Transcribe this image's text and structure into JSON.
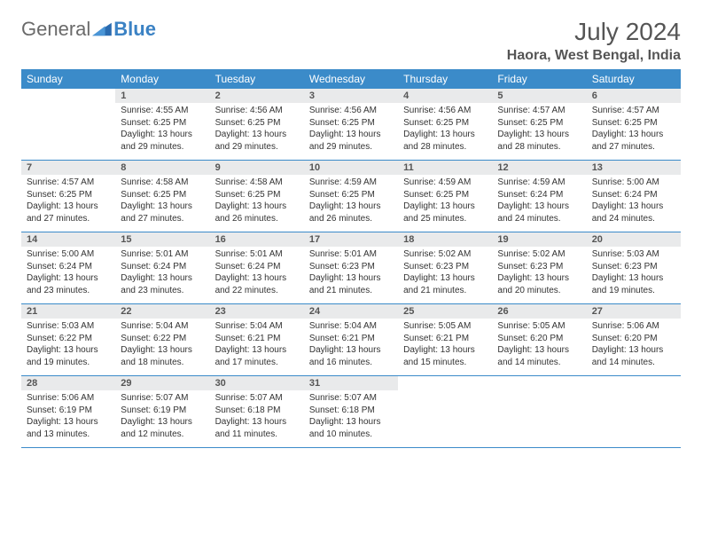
{
  "brand": {
    "part1": "General",
    "part2": "Blue"
  },
  "title": "July 2024",
  "location": "Haora, West Bengal, India",
  "colors": {
    "header_bg": "#3b8bc9",
    "header_text": "#ffffff",
    "daynum_bg": "#e9eaeb",
    "text": "#333333",
    "title_text": "#555555",
    "row_border": "#3b8bc9"
  },
  "weekdays": [
    "Sunday",
    "Monday",
    "Tuesday",
    "Wednesday",
    "Thursday",
    "Friday",
    "Saturday"
  ],
  "start_weekday": 1,
  "days": [
    {
      "n": 1,
      "sunrise": "4:55 AM",
      "sunset": "6:25 PM",
      "daylight": "13 hours and 29 minutes."
    },
    {
      "n": 2,
      "sunrise": "4:56 AM",
      "sunset": "6:25 PM",
      "daylight": "13 hours and 29 minutes."
    },
    {
      "n": 3,
      "sunrise": "4:56 AM",
      "sunset": "6:25 PM",
      "daylight": "13 hours and 29 minutes."
    },
    {
      "n": 4,
      "sunrise": "4:56 AM",
      "sunset": "6:25 PM",
      "daylight": "13 hours and 28 minutes."
    },
    {
      "n": 5,
      "sunrise": "4:57 AM",
      "sunset": "6:25 PM",
      "daylight": "13 hours and 28 minutes."
    },
    {
      "n": 6,
      "sunrise": "4:57 AM",
      "sunset": "6:25 PM",
      "daylight": "13 hours and 27 minutes."
    },
    {
      "n": 7,
      "sunrise": "4:57 AM",
      "sunset": "6:25 PM",
      "daylight": "13 hours and 27 minutes."
    },
    {
      "n": 8,
      "sunrise": "4:58 AM",
      "sunset": "6:25 PM",
      "daylight": "13 hours and 27 minutes."
    },
    {
      "n": 9,
      "sunrise": "4:58 AM",
      "sunset": "6:25 PM",
      "daylight": "13 hours and 26 minutes."
    },
    {
      "n": 10,
      "sunrise": "4:59 AM",
      "sunset": "6:25 PM",
      "daylight": "13 hours and 26 minutes."
    },
    {
      "n": 11,
      "sunrise": "4:59 AM",
      "sunset": "6:25 PM",
      "daylight": "13 hours and 25 minutes."
    },
    {
      "n": 12,
      "sunrise": "4:59 AM",
      "sunset": "6:24 PM",
      "daylight": "13 hours and 24 minutes."
    },
    {
      "n": 13,
      "sunrise": "5:00 AM",
      "sunset": "6:24 PM",
      "daylight": "13 hours and 24 minutes."
    },
    {
      "n": 14,
      "sunrise": "5:00 AM",
      "sunset": "6:24 PM",
      "daylight": "13 hours and 23 minutes."
    },
    {
      "n": 15,
      "sunrise": "5:01 AM",
      "sunset": "6:24 PM",
      "daylight": "13 hours and 23 minutes."
    },
    {
      "n": 16,
      "sunrise": "5:01 AM",
      "sunset": "6:24 PM",
      "daylight": "13 hours and 22 minutes."
    },
    {
      "n": 17,
      "sunrise": "5:01 AM",
      "sunset": "6:23 PM",
      "daylight": "13 hours and 21 minutes."
    },
    {
      "n": 18,
      "sunrise": "5:02 AM",
      "sunset": "6:23 PM",
      "daylight": "13 hours and 21 minutes."
    },
    {
      "n": 19,
      "sunrise": "5:02 AM",
      "sunset": "6:23 PM",
      "daylight": "13 hours and 20 minutes."
    },
    {
      "n": 20,
      "sunrise": "5:03 AM",
      "sunset": "6:23 PM",
      "daylight": "13 hours and 19 minutes."
    },
    {
      "n": 21,
      "sunrise": "5:03 AM",
      "sunset": "6:22 PM",
      "daylight": "13 hours and 19 minutes."
    },
    {
      "n": 22,
      "sunrise": "5:04 AM",
      "sunset": "6:22 PM",
      "daylight": "13 hours and 18 minutes."
    },
    {
      "n": 23,
      "sunrise": "5:04 AM",
      "sunset": "6:21 PM",
      "daylight": "13 hours and 17 minutes."
    },
    {
      "n": 24,
      "sunrise": "5:04 AM",
      "sunset": "6:21 PM",
      "daylight": "13 hours and 16 minutes."
    },
    {
      "n": 25,
      "sunrise": "5:05 AM",
      "sunset": "6:21 PM",
      "daylight": "13 hours and 15 minutes."
    },
    {
      "n": 26,
      "sunrise": "5:05 AM",
      "sunset": "6:20 PM",
      "daylight": "13 hours and 14 minutes."
    },
    {
      "n": 27,
      "sunrise": "5:06 AM",
      "sunset": "6:20 PM",
      "daylight": "13 hours and 14 minutes."
    },
    {
      "n": 28,
      "sunrise": "5:06 AM",
      "sunset": "6:19 PM",
      "daylight": "13 hours and 13 minutes."
    },
    {
      "n": 29,
      "sunrise": "5:07 AM",
      "sunset": "6:19 PM",
      "daylight": "13 hours and 12 minutes."
    },
    {
      "n": 30,
      "sunrise": "5:07 AM",
      "sunset": "6:18 PM",
      "daylight": "13 hours and 11 minutes."
    },
    {
      "n": 31,
      "sunrise": "5:07 AM",
      "sunset": "6:18 PM",
      "daylight": "13 hours and 10 minutes."
    }
  ],
  "labels": {
    "sunrise": "Sunrise:",
    "sunset": "Sunset:",
    "daylight": "Daylight:"
  }
}
